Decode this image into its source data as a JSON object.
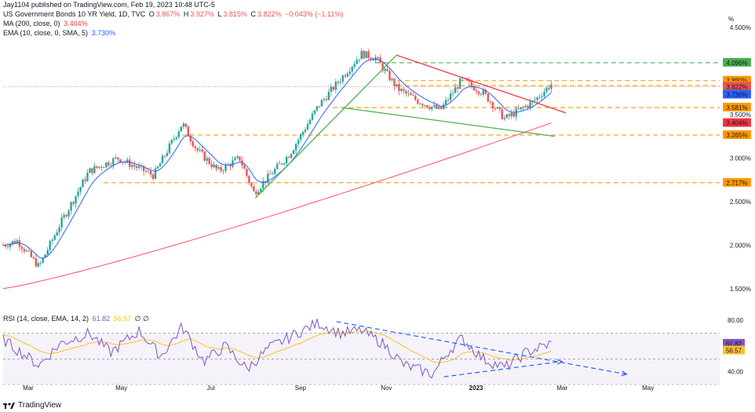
{
  "header": {
    "publisher": "Jay1104 published on TradingView.com, Feb 19, 2023 10:48 UTC-5",
    "symbol": "US Government Bonds 10 YR Yield, 1D, TVC",
    "o_label": "O",
    "o_value": "3.867%",
    "h_label": "H",
    "h_value": "3.927%",
    "l_label": "L",
    "l_value": "3.815%",
    "c_label": "C",
    "c_value": "3.822%",
    "change": "−0.043% (−1.11%)",
    "ma_label": "MA (200, close, 0)",
    "ma_value": "3.404%",
    "ema_label": "EMA (10, close, 0, SMA, 5)",
    "ema_value": "3.730%",
    "rsi_label": "RSI (14, close, EMA, 14, 2)",
    "rsi_value": "61.82",
    "rsi_ma_value": "56.57",
    "rsi_extra": "∅ ∅"
  },
  "brand": {
    "name": "TradingView"
  },
  "colors": {
    "up": "#26a69a",
    "down": "#ef5350",
    "ma": "#f7525f",
    "ema": "#2962ff",
    "rsi": "#7e57c2",
    "rsi_ma": "#fbc02d",
    "orange_level": "#ff9800",
    "green_level": "#4caf50",
    "trend_red": "#f23645",
    "trend_green": "#4caf50",
    "rsi_arrow": "#2962ff"
  },
  "chart_data": {
    "type": "candlestick",
    "price_axis": {
      "unit": "%",
      "ticks": [
        "4.500%",
        "3.500%",
        "3.000%",
        "2.500%",
        "2.000%",
        "1.500%"
      ],
      "range": [
        1.3,
        4.6
      ]
    },
    "rsi_axis": {
      "ticks": [
        "80.00",
        "40.00"
      ],
      "range": [
        30,
        85
      ]
    },
    "time_axis": {
      "labels": [
        "Mar",
        "May",
        "Jul",
        "Sep",
        "Nov",
        "2023",
        "Mar",
        "May"
      ]
    },
    "price_labels": [
      {
        "value": 4.096,
        "text": "4.096%",
        "color": "#4caf50"
      },
      {
        "value": 3.89,
        "text": "3.890%",
        "color": "#ff9800"
      },
      {
        "value": 3.833,
        "text": "3.833%",
        "color": "#ff9800"
      },
      {
        "value": 3.822,
        "text": "3.822%",
        "color": "#ef5350"
      },
      {
        "value": 3.73,
        "text": "3.730%",
        "color": "#2962ff"
      },
      {
        "value": 3.581,
        "text": "3.581%",
        "color": "#ff9800"
      },
      {
        "value": 3.404,
        "text": "3.404%",
        "color": "#f23645"
      },
      {
        "value": 3.265,
        "text": "3.265%",
        "color": "#ff9800"
      },
      {
        "value": 2.717,
        "text": "2.717%",
        "color": "#ff9800"
      }
    ],
    "levels": [
      {
        "value": 4.096,
        "color": "#4caf50",
        "start": 0.52
      },
      {
        "value": 3.89,
        "color": "#ff9800",
        "start": 0.55
      },
      {
        "value": 3.833,
        "color": "#ff9800",
        "start": 0.55
      },
      {
        "value": 3.581,
        "color": "#ff9800",
        "start": 0.46
      },
      {
        "value": 3.265,
        "color": "#ff9800",
        "start": 0.25
      },
      {
        "value": 2.717,
        "color": "#ff9800",
        "start": 0.14
      }
    ],
    "current_price": 3.822,
    "anchors": [
      {
        "t": 0.0,
        "v": 2.0
      },
      {
        "t": 0.02,
        "v": 2.05
      },
      {
        "t": 0.05,
        "v": 1.75
      },
      {
        "t": 0.08,
        "v": 2.25
      },
      {
        "t": 0.12,
        "v": 2.85
      },
      {
        "t": 0.16,
        "v": 3.0
      },
      {
        "t": 0.21,
        "v": 2.8
      },
      {
        "t": 0.25,
        "v": 3.4
      },
      {
        "t": 0.27,
        "v": 3.1
      },
      {
        "t": 0.3,
        "v": 2.85
      },
      {
        "t": 0.33,
        "v": 3.0
      },
      {
        "t": 0.35,
        "v": 2.6
      },
      {
        "t": 0.4,
        "v": 3.05
      },
      {
        "t": 0.44,
        "v": 3.6
      },
      {
        "t": 0.47,
        "v": 3.9
      },
      {
        "t": 0.5,
        "v": 4.2
      },
      {
        "t": 0.52,
        "v": 4.15
      },
      {
        "t": 0.55,
        "v": 3.8
      },
      {
        "t": 0.58,
        "v": 3.65
      },
      {
        "t": 0.61,
        "v": 3.55
      },
      {
        "t": 0.64,
        "v": 3.9
      },
      {
        "t": 0.67,
        "v": 3.75
      },
      {
        "t": 0.7,
        "v": 3.45
      },
      {
        "t": 0.72,
        "v": 3.55
      },
      {
        "t": 0.74,
        "v": 3.65
      },
      {
        "t": 0.765,
        "v": 3.85
      }
    ],
    "rsi_anchors": [
      {
        "t": 0.0,
        "v": 65
      },
      {
        "t": 0.05,
        "v": 45
      },
      {
        "t": 0.08,
        "v": 62
      },
      {
        "t": 0.12,
        "v": 70
      },
      {
        "t": 0.15,
        "v": 55
      },
      {
        "t": 0.19,
        "v": 72
      },
      {
        "t": 0.22,
        "v": 52
      },
      {
        "t": 0.25,
        "v": 75
      },
      {
        "t": 0.28,
        "v": 48
      },
      {
        "t": 0.31,
        "v": 60
      },
      {
        "t": 0.34,
        "v": 42
      },
      {
        "t": 0.37,
        "v": 58
      },
      {
        "t": 0.41,
        "v": 70
      },
      {
        "t": 0.44,
        "v": 78
      },
      {
        "t": 0.47,
        "v": 70
      },
      {
        "t": 0.5,
        "v": 72
      },
      {
        "t": 0.53,
        "v": 62
      },
      {
        "t": 0.56,
        "v": 45
      },
      {
        "t": 0.6,
        "v": 38
      },
      {
        "t": 0.62,
        "v": 55
      },
      {
        "t": 0.64,
        "v": 66
      },
      {
        "t": 0.67,
        "v": 50
      },
      {
        "t": 0.7,
        "v": 43
      },
      {
        "t": 0.73,
        "v": 55
      },
      {
        "t": 0.765,
        "v": 62
      }
    ]
  }
}
